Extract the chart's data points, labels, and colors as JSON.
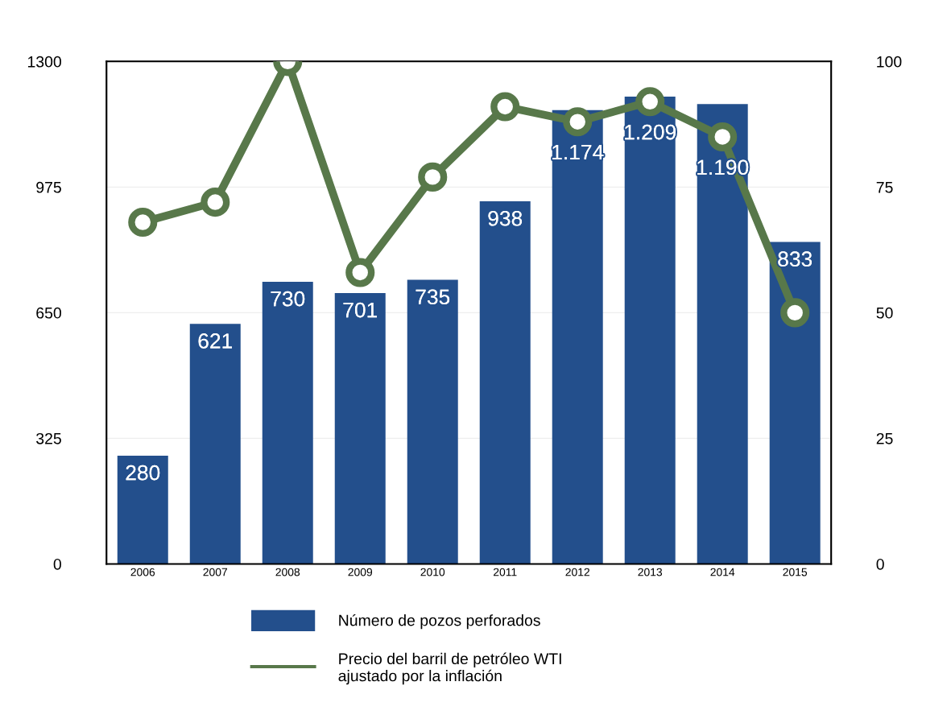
{
  "chart_data": {
    "type": "bar",
    "categories": [
      "2006",
      "2007",
      "2008",
      "2009",
      "2010",
      "2011",
      "2012",
      "2013",
      "2014",
      "2015"
    ],
    "series": [
      {
        "name": "Número de pozos perforados",
        "color": "#234f8c",
        "values": [
          280,
          621,
          730,
          701,
          735,
          938,
          1174,
          1209,
          1190,
          833
        ],
        "value_labels": [
          "280",
          "621",
          "730",
          "701",
          "735",
          "938",
          "1.174",
          "1.209",
          "1.190",
          "833"
        ]
      },
      {
        "name": "Precio del barril de petróleo WTI\najustado por la inflación",
        "type": "line",
        "axis": "y2",
        "color": "#58784a",
        "marker": "circle",
        "values": [
          68,
          72,
          100,
          58,
          77,
          91,
          88,
          92,
          85,
          50
        ]
      }
    ],
    "ylim": [
      0,
      1300
    ],
    "yticks": [
      0,
      325,
      650,
      975,
      1300
    ],
    "y2lim": [
      0,
      100
    ],
    "y2ticks": [
      0,
      25,
      50,
      75,
      100
    ],
    "grid": "y",
    "legend": "bottom"
  }
}
